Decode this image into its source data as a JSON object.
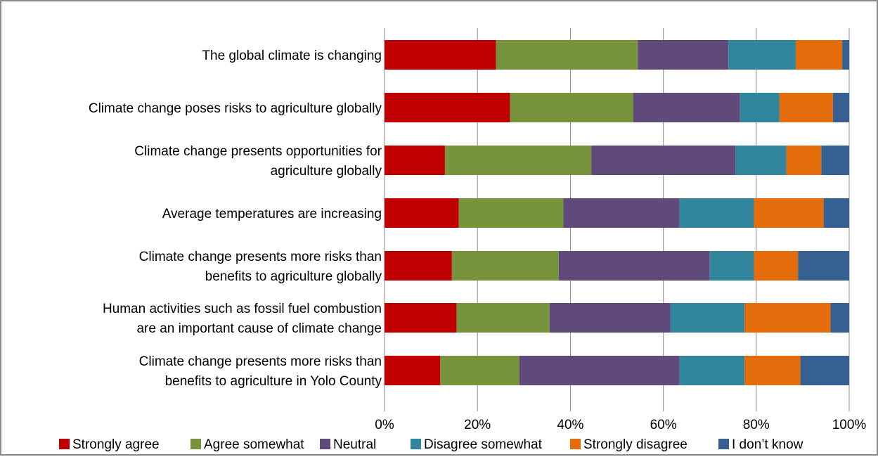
{
  "chart_data": {
    "type": "bar",
    "orientation": "horizontal",
    "stacked": "percent",
    "categories": [
      [
        "The global climate is changing"
      ],
      [
        "Climate change poses risks to agriculture globally"
      ],
      [
        "Climate change presents opportunities for",
        "agriculture globally"
      ],
      [
        "Average temperatures are increasing"
      ],
      [
        "Climate change presents more risks than",
        "benefits to agriculture globally"
      ],
      [
        "Human activities such as fossil fuel combustion",
        "are an important cause of climate change"
      ],
      [
        "Climate change presents more risks than",
        "benefits to agriculture in Yolo County"
      ]
    ],
    "series": [
      {
        "name": "Strongly agree",
        "color": "#c00000",
        "values": [
          24,
          27,
          13,
          16,
          14.5,
          15.5,
          12
        ]
      },
      {
        "name": "Agree somewhat",
        "color": "#77933c",
        "values": [
          30.5,
          26.5,
          31.5,
          22.5,
          23,
          20,
          17
        ]
      },
      {
        "name": "Neutral",
        "color": "#604a7b",
        "values": [
          19.5,
          23,
          31,
          25,
          32.5,
          26,
          34.5
        ]
      },
      {
        "name": "Disagree somewhat",
        "color": "#31859c",
        "values": [
          14.5,
          8.5,
          11,
          16,
          9.5,
          16,
          14
        ]
      },
      {
        "name": "Strongly disagree",
        "color": "#e46c0a",
        "values": [
          10,
          11.5,
          7.5,
          15,
          9.5,
          18.5,
          12
        ]
      },
      {
        "name": "I don’t know",
        "color": "#376092",
        "values": [
          1.5,
          3.5,
          6,
          5.5,
          11,
          4,
          10.5
        ]
      }
    ],
    "x_ticks": [
      "0%",
      "20%",
      "40%",
      "60%",
      "80%",
      "100%"
    ],
    "xlim": [
      0,
      100
    ],
    "grid": "vertical",
    "legend_position": "bottom"
  }
}
